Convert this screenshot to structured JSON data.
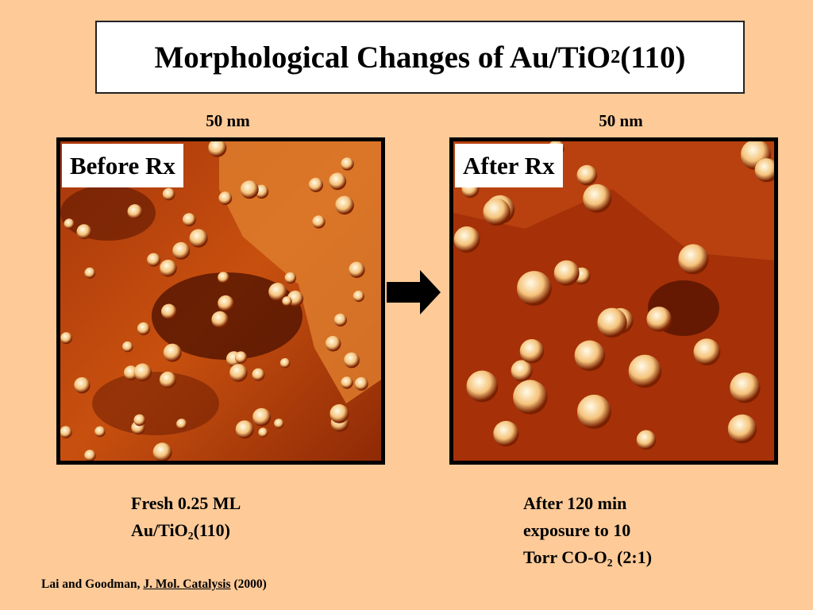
{
  "title": [
    "Morphological Changes of Au/TiO",
    "2",
    "(110)"
  ],
  "panels": [
    {
      "scale": "50 nm",
      "label": "Before Rx",
      "caption": [
        [
          "Fresh 0.25 ML"
        ],
        [
          "Au/TiO",
          "2",
          "(110)"
        ]
      ]
    },
    {
      "scale": "50 nm",
      "label": "After Rx",
      "caption": [
        [
          "After 120 min"
        ],
        [
          "exposure to 10"
        ],
        [
          "Torr CO-O",
          "2",
          " (2:1)"
        ]
      ]
    }
  ],
  "citation": {
    "authors": "Lai and Goodman,",
    "journal": "J. Mol. Catalysis",
    "year": "(2000)"
  }
}
